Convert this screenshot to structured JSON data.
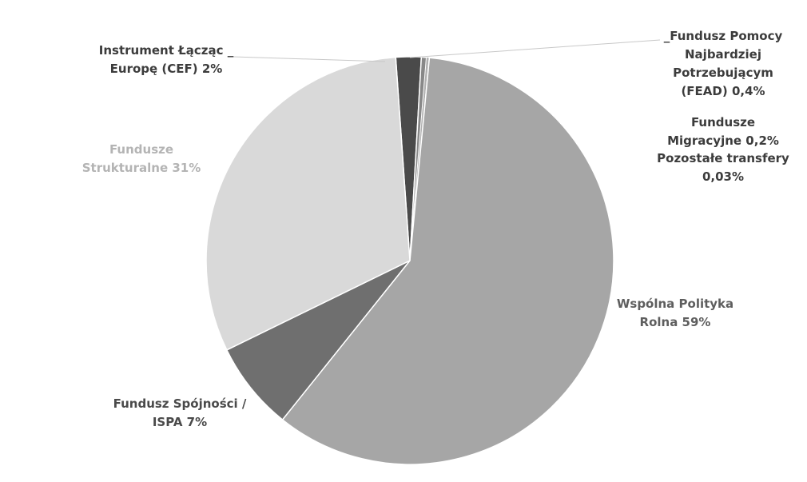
{
  "chart_data": {
    "type": "pie",
    "title": "",
    "slices": [
      {
        "label": "Instrument Łącząc _\nEuropę (CEF) 2%",
        "value": 2,
        "color": "#4a4a4a",
        "text_color": "#3c3c3c"
      },
      {
        "label": "_Fundusz Pomocy\nNajbardziej\nPotrzebującym\n(FEAD) 0,4%",
        "value": 0.4,
        "color": "#888888",
        "text_color": "#3c3c3c"
      },
      {
        "label": "Fundusze\nMigracyjne 0,2%",
        "value": 0.2,
        "color": "#b0b0b0",
        "text_color": "#3c3c3c"
      },
      {
        "label": "Pozostałe transfery\n0,03%",
        "value": 0.03,
        "color": "#d0d0d0",
        "text_color": "#3c3c3c"
      },
      {
        "label": "Wspólna Polityka\nRolna 59%",
        "value": 59,
        "color": "#a6a6a6",
        "text_color": "#5e5e5e"
      },
      {
        "label": "Fundusz Spójności /\nISPA 7%",
        "value": 7,
        "color": "#6f6f6f",
        "text_color": "#4a4a4a"
      },
      {
        "label": "Fundusze\nStrukturalne 31%",
        "value": 31,
        "color": "#d9d9d9",
        "text_color": "#b4b4b4"
      }
    ]
  }
}
